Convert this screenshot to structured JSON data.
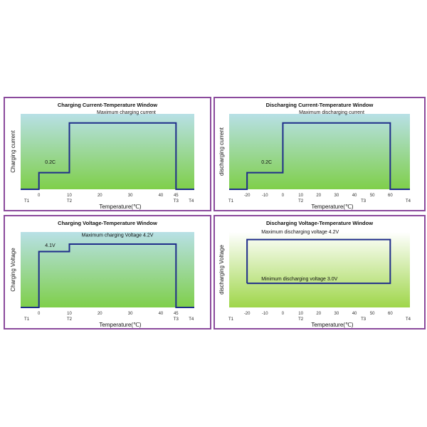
{
  "chart_data": [
    {
      "type": "line",
      "title": "Charging Current-Temperature  Window",
      "xlabel": "Temperature(℃)",
      "ylabel": "Charging current",
      "xticks": [
        "0",
        "10",
        "20",
        "30",
        "40",
        "45"
      ],
      "xlim": [
        -6,
        51
      ],
      "ylim": [
        0,
        1
      ],
      "t_labels": [
        {
          "text": "T1",
          "x": -4
        },
        {
          "text": "T2",
          "x": 10
        },
        {
          "text": "T3",
          "x": 45
        },
        {
          "text": "T4",
          "x": 50
        }
      ],
      "series": [
        {
          "points": [
            [
              -6,
              0
            ],
            [
              0,
              0
            ],
            [
              0,
              0.22
            ],
            [
              10,
              0.22
            ],
            [
              10,
              0.88
            ],
            [
              45,
              0.88
            ],
            [
              45,
              0
            ],
            [
              51,
              0
            ]
          ]
        }
      ],
      "annotations": [
        {
          "text": "0.2C",
          "x": 2,
          "y": 0.34
        },
        {
          "text": "Maximum charging current",
          "x": 19,
          "y": 1.0
        }
      ],
      "colors": {
        "line": "#1f2d8a",
        "bg_top": "#b8e0e6",
        "bg_bottom": "#7fcf4a"
      }
    },
    {
      "type": "line",
      "title": "Discharging  Current-Temperature  Window",
      "xlabel": "Temperature(℃)",
      "ylabel": "discharging current",
      "xticks": [
        "-20",
        "-10",
        "0",
        "10",
        "20",
        "30",
        "40",
        "50",
        "60"
      ],
      "xlim": [
        -30,
        71
      ],
      "ylim": [
        0,
        1
      ],
      "t_labels": [
        {
          "text": "T1",
          "x": -29
        },
        {
          "text": "T2",
          "x": 10
        },
        {
          "text": "T3",
          "x": 45
        },
        {
          "text": "T4",
          "x": 70
        }
      ],
      "series": [
        {
          "points": [
            [
              -30,
              0
            ],
            [
              -20,
              0
            ],
            [
              -20,
              0.22
            ],
            [
              0,
              0.22
            ],
            [
              0,
              0.88
            ],
            [
              60,
              0.88
            ],
            [
              60,
              0
            ],
            [
              71,
              0
            ]
          ]
        }
      ],
      "annotations": [
        {
          "text": "0.2C",
          "x": -12,
          "y": 0.34
        },
        {
          "text": "Maximum discharging current",
          "x": 9,
          "y": 1.0
        }
      ],
      "colors": {
        "line": "#1f2d8a",
        "bg_top": "#b8e0e6",
        "bg_bottom": "#7fcf4a"
      }
    },
    {
      "type": "line",
      "title": "Charging  Voltage-Temperature  Window",
      "xlabel": "Temperature(℃)",
      "ylabel": "Charging Voltage",
      "xticks": [
        "0",
        "10",
        "20",
        "30",
        "40",
        "45"
      ],
      "xlim": [
        -6,
        51
      ],
      "ylim": [
        0,
        1
      ],
      "t_labels": [
        {
          "text": "T1",
          "x": -4
        },
        {
          "text": "T2",
          "x": 10
        },
        {
          "text": "T3",
          "x": 45
        },
        {
          "text": "T4",
          "x": 50
        }
      ],
      "series": [
        {
          "points": [
            [
              -6,
              0
            ],
            [
              0,
              0
            ],
            [
              0,
              0.74
            ],
            [
              10,
              0.74
            ],
            [
              10,
              0.84
            ],
            [
              45,
              0.84
            ],
            [
              45,
              0
            ],
            [
              51,
              0
            ]
          ]
        }
      ],
      "annotations": [
        {
          "text": "4.1V",
          "x": 2,
          "y": 0.8
        },
        {
          "text": "Maximum charging Voltage 4.2V",
          "x": 14,
          "y": 0.94
        }
      ],
      "colors": {
        "line": "#1f2d8a",
        "bg_top": "#b8e0e6",
        "bg_bottom": "#7fcf4a"
      }
    },
    {
      "type": "line",
      "title": "Discharging Voltage-Temperature  Window",
      "xlabel": "Temperature(℃)",
      "ylabel": "discharging Voltage",
      "xticks": [
        "-20",
        "-10",
        "0",
        "10",
        "20",
        "30",
        "40",
        "50",
        "60"
      ],
      "xlim": [
        -30,
        71
      ],
      "ylim": [
        0,
        1
      ],
      "t_labels": [
        {
          "text": "T1",
          "x": -29
        },
        {
          "text": "T2",
          "x": 10
        },
        {
          "text": "T3",
          "x": 45
        },
        {
          "text": "T4",
          "x": 70
        }
      ],
      "series": [
        {
          "points": [
            [
              -20,
              0.32
            ],
            [
              -20,
              0.9
            ],
            [
              60,
              0.9
            ],
            [
              60,
              0.32
            ],
            [
              -20,
              0.32
            ]
          ]
        }
      ],
      "annotations": [
        {
          "text": "Maximum discharging voltage 4.2V",
          "x": -12,
          "y": 0.98
        },
        {
          "text": "Minimum discharging voltage 3.0V",
          "x": -12,
          "y": 0.36
        }
      ],
      "colors": {
        "line": "#1f2d8a",
        "bg_top": "#ffffff",
        "bg_bottom": "#9fd64a"
      }
    }
  ]
}
